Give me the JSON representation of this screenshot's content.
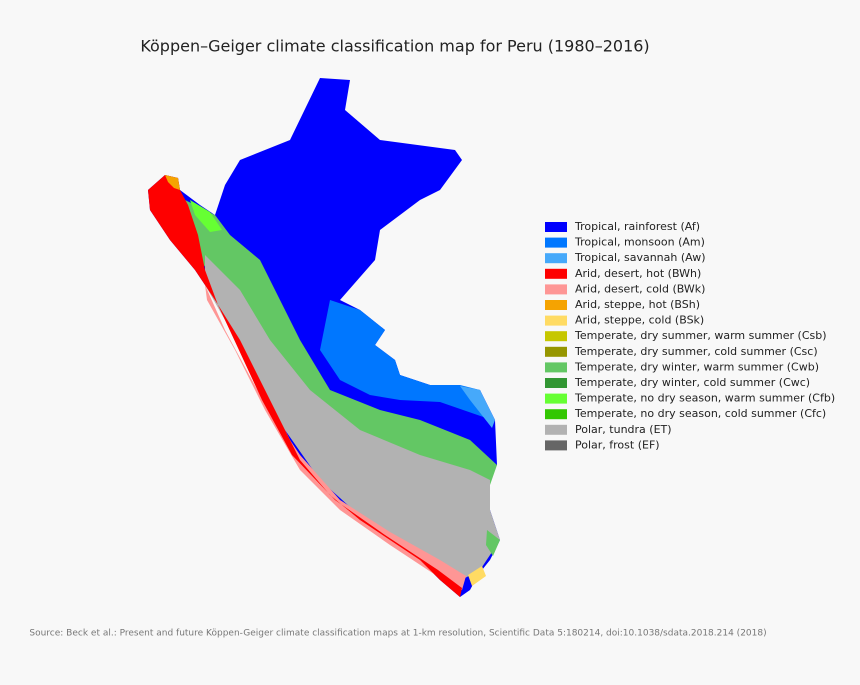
{
  "title": "Köppen–Geiger climate classification map for Peru (1980–2016)",
  "legend": [
    {
      "label": "Tropical, rainforest (Af)",
      "color": "#0000fe"
    },
    {
      "label": "Tropical, monsoon (Am)",
      "color": "#0077ff"
    },
    {
      "label": "Tropical, savannah (Aw)",
      "color": "#46a9fa"
    },
    {
      "label": "Arid, desert, hot (BWh)",
      "color": "#fe0000"
    },
    {
      "label": "Arid, desert, cold (BWk)",
      "color": "#fe9695"
    },
    {
      "label": "Arid, steppe, hot (BSh)",
      "color": "#f5a301"
    },
    {
      "label": "Arid, steppe, cold (BSk)",
      "color": "#ffdb63"
    },
    {
      "label": "Temperate, dry summer, warm summer (Csb)",
      "color": "#c6c700"
    },
    {
      "label": "Temperate, dry summer, cold summer (Csc)",
      "color": "#969600"
    },
    {
      "label": "Temperate, dry winter, warm summer (Cwb)",
      "color": "#63c764"
    },
    {
      "label": "Temperate, dry winter, cold summer (Cwc)",
      "color": "#329633"
    },
    {
      "label": "Temperate, no dry season, warm summer (Cfb)",
      "color": "#66ff33"
    },
    {
      "label": "Temperate, no dry season, cold summer (Cfc)",
      "color": "#32c701"
    },
    {
      "label": "Polar, tundra (ET)",
      "color": "#b2b2b2"
    },
    {
      "label": "Polar, frost (EF)",
      "color": "#666666"
    }
  ],
  "source": "Source: Beck et al.: Present and future Köppen-Geiger climate classification maps at 1-km resolution, Scientific Data 5:180214, doi:10.1038/sdata.2018.214 (2018)"
}
